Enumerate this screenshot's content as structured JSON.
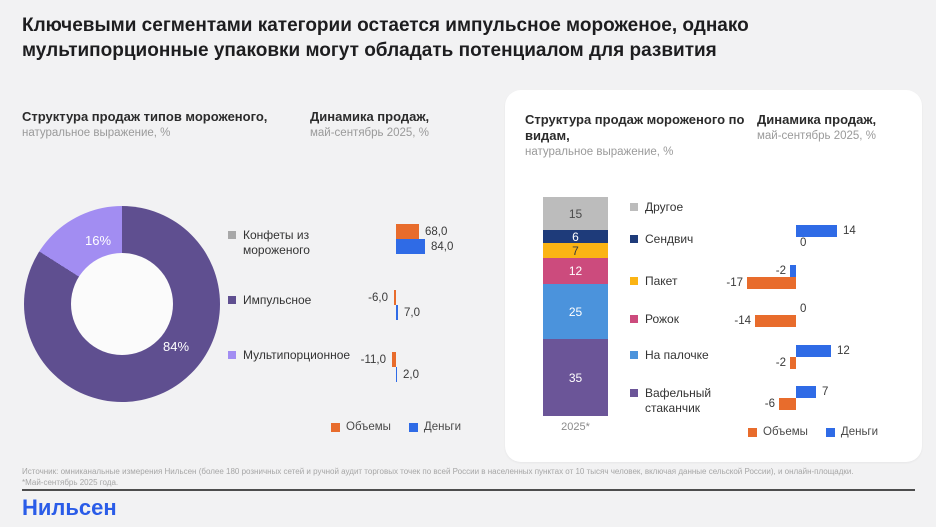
{
  "title": "Ключевыми сегментами категории остается импульсное мороженое, однако мультипорционные упаковки могут обладать потенциалом для развития",
  "panels": {
    "left": {
      "structure_title": "Структура продаж типов мороженого,",
      "structure_subtitle": "натуральное выражение, %",
      "dynamics_title": "Динамика продаж,",
      "dynamics_subtitle": "май-сентябрь 2025, %"
    },
    "right": {
      "structure_title": "Структура продаж мороженого по видам,",
      "structure_subtitle": "натуральное выражение, %",
      "dynamics_title": "Динамика продаж,",
      "dynamics_subtitle": "май-сентябрь 2025, %"
    }
  },
  "legend": [
    {
      "label": "Объемы",
      "color": "#E86C2C"
    },
    {
      "label": "Деньги",
      "color": "#2F6BE6"
    }
  ],
  "footer": {
    "source_line1": "Источник: омниканальные измерения Нильсен (более 180 розничных сетей и ручной аудит торговых точек по всей России в населенных пунктах от 10 тысяч человек, включая данные сельской России), и онлайн-площадки.",
    "source_line2": "*Май-сентябрь 2025 года.",
    "logo": "Нильсен"
  },
  "colors": {
    "background": "#F2F2F3",
    "card": "#FFFFFF",
    "orange_volumes": "#E86C2C",
    "blue_money": "#2F6BE6",
    "logo_blue": "#2A5CE8"
  },
  "chart_data": [
    {
      "id": "left_donut",
      "type": "pie",
      "donut": true,
      "title": "Структура продаж типов мороженого,",
      "subtitle": "натуральное выражение, %",
      "labels": [
        "Конфеты из мороженого",
        "Импульсное",
        "Мультипорционное"
      ],
      "values": [
        0,
        84,
        16
      ],
      "slice_labels": [
        "",
        "84%",
        "16%"
      ],
      "colors": [
        "#A8A8A8",
        "#5F4F90",
        "#A28DF2"
      ]
    },
    {
      "id": "left_dynamics",
      "type": "bar",
      "orientation": "horizontal",
      "title": "Динамика продаж,",
      "subtitle": "май-сентябрь 2025, %",
      "categories": [
        "Конфеты из мороженого",
        "Импульсное",
        "Мультипорционное"
      ],
      "category_marker_colors": [
        "#A8A8A8",
        "#5F4F90",
        "#A28DF2"
      ],
      "series": [
        {
          "name": "Объемы",
          "color": "#E86C2C",
          "values": [
            68.0,
            -6.0,
            -11.0
          ],
          "value_labels": [
            "68,0",
            "-6,0",
            "-11,0"
          ]
        },
        {
          "name": "Деньги",
          "color": "#2F6BE6",
          "values": [
            84.0,
            7.0,
            2.0
          ],
          "value_labels": [
            "84,0",
            "7,0",
            "2,0"
          ]
        }
      ],
      "legend": [
        "Объемы",
        "Деньги"
      ],
      "legend_position": "bottom"
    },
    {
      "id": "right_stacked",
      "type": "bar",
      "subtype": "stacked",
      "title": "Структура продаж мороженого по видам,",
      "subtitle": "натуральное выражение, %",
      "x_categories": [
        "2025*"
      ],
      "segments_top_to_bottom": [
        {
          "label": "Другое",
          "value": 15,
          "color": "#BCBCBC",
          "text_color": "#4A4A4A"
        },
        {
          "label": "Сендвич",
          "value": 6,
          "color": "#1E3B7A",
          "text_color": "#FFFFFF"
        },
        {
          "label": "Пакет",
          "value": 7,
          "color": "#FBB414",
          "text_color": "#3A3A3A"
        },
        {
          "label": "Рожок",
          "value": 12,
          "color": "#CC4B7D",
          "text_color": "#FFFFFF"
        },
        {
          "label": "На палочке",
          "value": 25,
          "color": "#4B93DC",
          "text_color": "#FFFFFF"
        },
        {
          "label": "Вафельный стаканчик",
          "value": 35,
          "color": "#6B5598",
          "text_color": "#FFFFFF"
        }
      ]
    },
    {
      "id": "right_dynamics",
      "type": "bar",
      "orientation": "horizontal",
      "title": "Динамика продаж,",
      "subtitle": "май-сентябрь 2025, %",
      "categories": [
        "Другое",
        "Сендвич",
        "Пакет",
        "Рожок",
        "На палочке",
        "Вафельный стаканчик"
      ],
      "series": [
        {
          "name": "Деньги",
          "color": "#2F6BE6",
          "values": [
            null,
            14,
            -2,
            0,
            12,
            7
          ],
          "value_labels": [
            "",
            "14",
            "-2",
            "0",
            "12",
            "7"
          ]
        },
        {
          "name": "Объемы",
          "color": "#E86C2C",
          "values": [
            null,
            0,
            -17,
            -14,
            -2,
            -6
          ],
          "value_labels": [
            "",
            "0",
            "-17",
            "-14",
            "-2",
            "-6"
          ]
        }
      ],
      "legend": [
        "Объемы",
        "Деньги"
      ],
      "legend_position": "bottom"
    }
  ]
}
